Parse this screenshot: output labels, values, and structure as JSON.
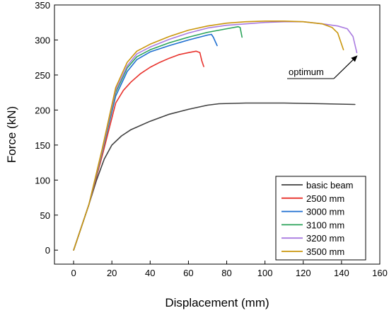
{
  "chart_data": {
    "type": "line",
    "title": "",
    "xlabel": "Displacement (mm)",
    "ylabel": "Force (kN)",
    "xlim": [
      -10,
      160
    ],
    "ylim": [
      -20,
      350
    ],
    "xticks": [
      0,
      20,
      40,
      60,
      80,
      100,
      120,
      140,
      160
    ],
    "yticks": [
      0,
      50,
      100,
      150,
      200,
      250,
      300,
      350
    ],
    "grid": false,
    "legend_position": "bottom-right",
    "series": [
      {
        "name": "basic beam",
        "color": "#404040",
        "points": [
          [
            0,
            0
          ],
          [
            8,
            65
          ],
          [
            12,
            100
          ],
          [
            16,
            130
          ],
          [
            20,
            150
          ],
          [
            25,
            163
          ],
          [
            30,
            172
          ],
          [
            40,
            184
          ],
          [
            50,
            194
          ],
          [
            60,
            201
          ],
          [
            70,
            207
          ],
          [
            76,
            209
          ],
          [
            90,
            210
          ],
          [
            110,
            210
          ],
          [
            130,
            209
          ],
          [
            147,
            208
          ]
        ]
      },
      {
        "name": "2500 mm",
        "color": "#e8322c",
        "points": [
          [
            0,
            0
          ],
          [
            8,
            65
          ],
          [
            15,
            135
          ],
          [
            22,
            210
          ],
          [
            26,
            228
          ],
          [
            30,
            240
          ],
          [
            35,
            252
          ],
          [
            40,
            261
          ],
          [
            45,
            268
          ],
          [
            50,
            274
          ],
          [
            55,
            279
          ],
          [
            60,
            282
          ],
          [
            64,
            284
          ],
          [
            66,
            282
          ],
          [
            67,
            270
          ],
          [
            68,
            262
          ]
        ]
      },
      {
        "name": "3000 mm",
        "color": "#1f6fd0",
        "points": [
          [
            0,
            0
          ],
          [
            8,
            65
          ],
          [
            15,
            140
          ],
          [
            22,
            220
          ],
          [
            28,
            255
          ],
          [
            33,
            272
          ],
          [
            40,
            283
          ],
          [
            50,
            292
          ],
          [
            60,
            300
          ],
          [
            70,
            307
          ],
          [
            72,
            308
          ],
          [
            73,
            304
          ],
          [
            75,
            292
          ]
        ]
      },
      {
        "name": "3100 mm",
        "color": "#2ba35a",
        "points": [
          [
            0,
            0
          ],
          [
            8,
            65
          ],
          [
            15,
            140
          ],
          [
            22,
            225
          ],
          [
            28,
            260
          ],
          [
            33,
            276
          ],
          [
            40,
            286
          ],
          [
            50,
            296
          ],
          [
            60,
            304
          ],
          [
            70,
            311
          ],
          [
            80,
            316
          ],
          [
            86,
            319
          ],
          [
            87,
            318
          ],
          [
            88,
            304
          ]
        ]
      },
      {
        "name": "3200 mm",
        "color": "#a97be0",
        "points": [
          [
            0,
            0
          ],
          [
            8,
            65
          ],
          [
            15,
            142
          ],
          [
            22,
            228
          ],
          [
            28,
            263
          ],
          [
            33,
            280
          ],
          [
            40,
            290
          ],
          [
            50,
            301
          ],
          [
            60,
            310
          ],
          [
            70,
            317
          ],
          [
            80,
            321
          ],
          [
            90,
            323
          ],
          [
            100,
            325
          ],
          [
            110,
            326
          ],
          [
            120,
            326
          ],
          [
            130,
            323
          ],
          [
            138,
            320
          ],
          [
            143,
            316
          ],
          [
            146,
            305
          ],
          [
            148,
            282
          ]
        ]
      },
      {
        "name": "3500 mm",
        "color": "#c9960c",
        "points": [
          [
            0,
            0
          ],
          [
            8,
            65
          ],
          [
            15,
            145
          ],
          [
            22,
            232
          ],
          [
            28,
            268
          ],
          [
            33,
            284
          ],
          [
            40,
            294
          ],
          [
            50,
            305
          ],
          [
            60,
            314
          ],
          [
            70,
            320
          ],
          [
            80,
            324
          ],
          [
            90,
            326
          ],
          [
            100,
            327
          ],
          [
            110,
            327
          ],
          [
            120,
            326
          ],
          [
            130,
            323
          ],
          [
            135,
            318
          ],
          [
            138,
            310
          ],
          [
            141,
            286
          ]
        ]
      }
    ],
    "annotations": [
      {
        "text": "optimum",
        "arrow_to": [
          148,
          282
        ]
      }
    ]
  }
}
